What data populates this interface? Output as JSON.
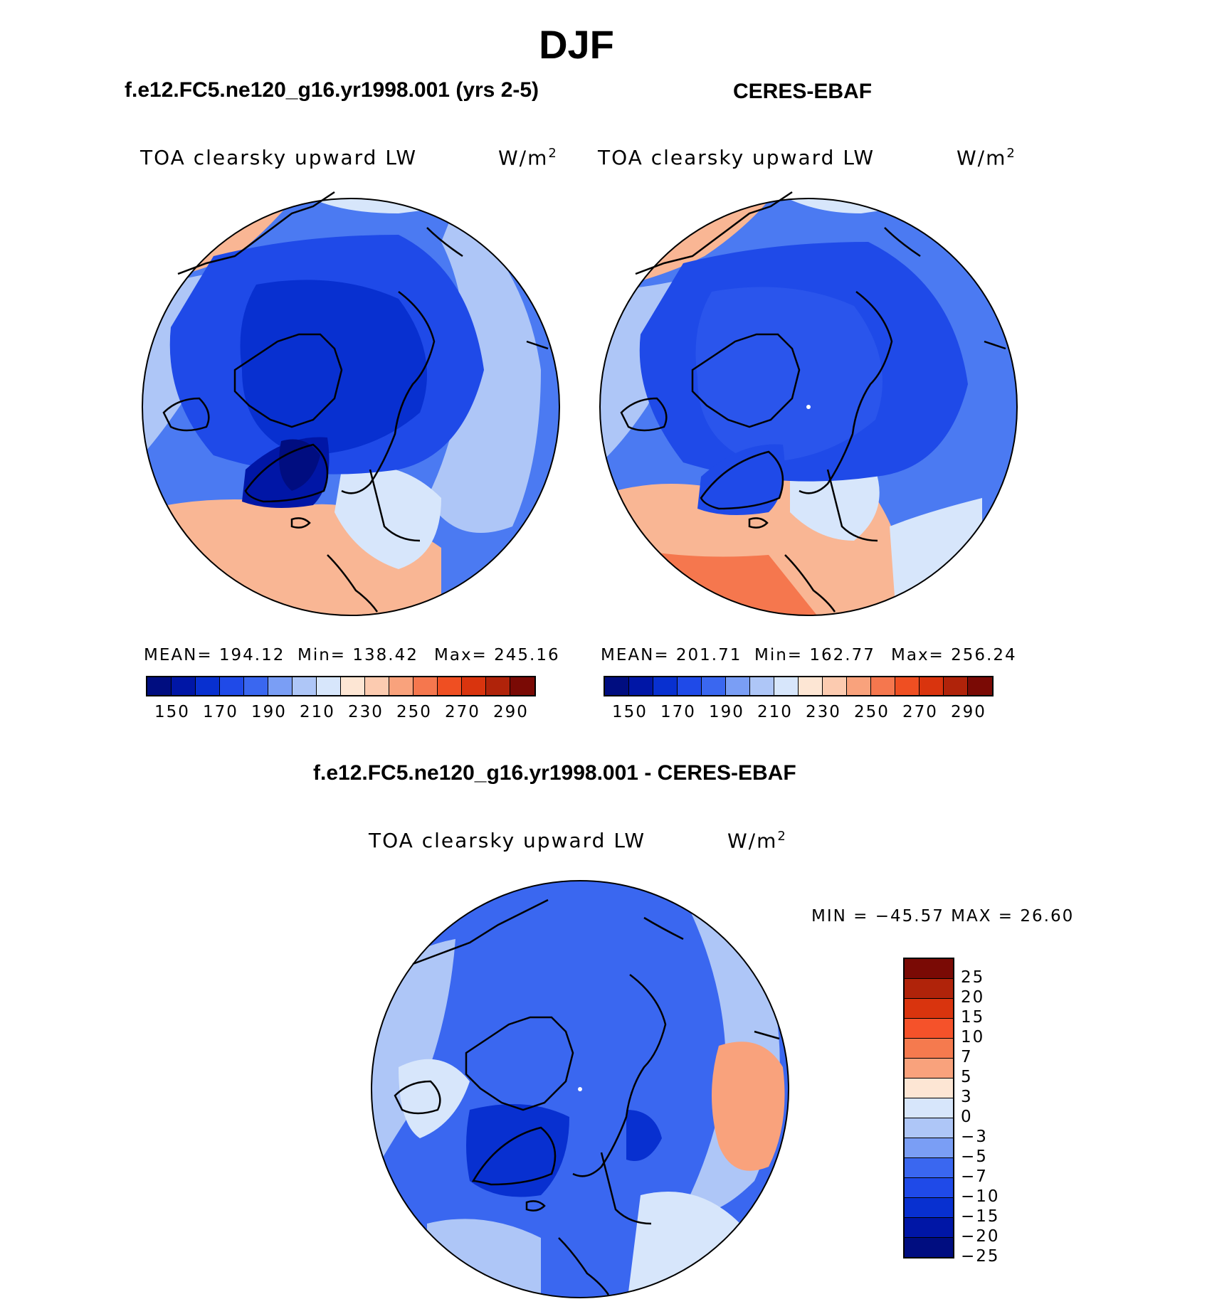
{
  "main_title": "DJF",
  "panels": {
    "left": {
      "heading": "f.e12.FC5.ne120_g16.yr1998.001 (yrs 2-5)",
      "variable": "TOA clearsky upward LW",
      "units_base": "W/m",
      "units_exp": "2",
      "stats": {
        "mean": "MEAN= 194.12",
        "min": "Min= 138.42",
        "max": "Max= 245.16"
      }
    },
    "right": {
      "heading": "CERES-EBAF",
      "variable": "TOA clearsky upward LW",
      "units_base": "W/m",
      "units_exp": "2",
      "stats": {
        "mean": "MEAN= 201.71",
        "min": "Min= 162.77",
        "max": "Max= 256.24"
      }
    },
    "diff": {
      "heading": "f.e12.FC5.ne120_g16.yr1998.001 - CERES-EBAF",
      "variable": "TOA clearsky upward LW",
      "units_base": "W/m",
      "units_exp": "2",
      "minmax": "MIN = −45.57 MAX =   26.60"
    }
  },
  "abs_colorbar": {
    "colors": [
      "#000d80",
      "#0016a6",
      "#0830d0",
      "#1f4ae8",
      "#3a67f0",
      "#7a9ef5",
      "#aec6f7",
      "#d7e6fb",
      "#fde6d4",
      "#fccbb0",
      "#f9a27c",
      "#f5774e",
      "#ef4f22",
      "#d9340e",
      "#b0230a",
      "#7a0a05"
    ],
    "labels": [
      "150",
      "170",
      "190",
      "210",
      "230",
      "250",
      "270",
      "290"
    ]
  },
  "diff_colorbar": {
    "colors": [
      "#7a0a05",
      "#b0230a",
      "#d9340e",
      "#f5522a",
      "#f57a4e",
      "#f9a27c",
      "#fde6d4",
      "#d7e6fb",
      "#aec6f7",
      "#7a9ef5",
      "#3a67f0",
      "#1f4ae8",
      "#0830d0",
      "#0016a6",
      "#000d80"
    ],
    "labels": [
      "25",
      "20",
      "15",
      "10",
      "7",
      "5",
      "3",
      "0",
      "−3",
      "−5",
      "−7",
      "−10",
      "−15",
      "−20",
      "−25"
    ]
  },
  "map_colors": {
    "ocean_atl": "#f9b694",
    "land_cold": "#1f4ae8",
    "deep_cold": "#0830d0",
    "greenland": "#0016a6",
    "pole": "#2a55ec",
    "mid": "#4b7af2",
    "light": "#aec6f7",
    "pale": "#d7e6fb",
    "diff_base": "#3a67f0",
    "diff_light": "#aec6f7",
    "diff_warm": "#f9a27c",
    "diff_pale": "#d7e6fb"
  }
}
